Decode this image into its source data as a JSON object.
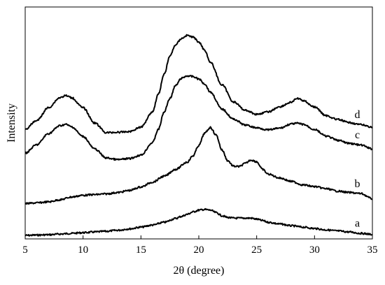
{
  "chart_data": {
    "type": "line",
    "xlabel": "2θ (degree)",
    "ylabel": "Intensity",
    "xlim": [
      5,
      35
    ],
    "xticks": [
      5,
      10,
      15,
      20,
      25,
      30,
      35
    ],
    "yticks_shown": false,
    "grid": false,
    "legend": "none",
    "line_color": "#000000",
    "series": [
      {
        "name": "a",
        "x": [
          5,
          6,
          7,
          8,
          9,
          10,
          11,
          12,
          13,
          14,
          15,
          16,
          17,
          18,
          18.5,
          19,
          19.5,
          20,
          20.5,
          21,
          21.5,
          22,
          22.5,
          23,
          23.5,
          24,
          24.5,
          25,
          25.5,
          26,
          27,
          28,
          29,
          30,
          31,
          32,
          33,
          34,
          35
        ],
        "y": [
          0.0,
          0.01,
          0.02,
          0.04,
          0.06,
          0.08,
          0.1,
          0.12,
          0.15,
          0.19,
          0.24,
          0.3,
          0.38,
          0.49,
          0.55,
          0.61,
          0.68,
          0.73,
          0.75,
          0.73,
          0.66,
          0.57,
          0.52,
          0.5,
          0.5,
          0.5,
          0.5,
          0.47,
          0.43,
          0.38,
          0.33,
          0.28,
          0.24,
          0.2,
          0.16,
          0.13,
          0.1,
          0.06,
          0.03
        ]
      },
      {
        "name": "b",
        "x": [
          5,
          6,
          7,
          8,
          9,
          10,
          11,
          12,
          13,
          14,
          15,
          16,
          17,
          18,
          19,
          19.5,
          20,
          20.5,
          21,
          21.5,
          22,
          22.5,
          23,
          23.5,
          24,
          24.5,
          25,
          25.5,
          26,
          27,
          28,
          29,
          30,
          31,
          32,
          33,
          34,
          35
        ],
        "y": [
          0.92,
          0.94,
          0.97,
          1.03,
          1.11,
          1.16,
          1.18,
          1.2,
          1.24,
          1.3,
          1.4,
          1.54,
          1.71,
          1.91,
          2.12,
          2.3,
          2.6,
          2.95,
          3.12,
          2.9,
          2.47,
          2.16,
          2.0,
          1.99,
          2.08,
          2.18,
          2.13,
          1.91,
          1.77,
          1.66,
          1.56,
          1.46,
          1.41,
          1.35,
          1.28,
          1.24,
          1.21,
          1.06
        ]
      },
      {
        "name": "c",
        "x": [
          5,
          6,
          7,
          8,
          8.5,
          9,
          10,
          11,
          12,
          13,
          14,
          15,
          16,
          16.5,
          17,
          17.5,
          18,
          18.5,
          19,
          19.5,
          20,
          20.5,
          21,
          22,
          23,
          24,
          25,
          26,
          27,
          28,
          28.5,
          29,
          30,
          31,
          32,
          33,
          34,
          35
        ],
        "y": [
          2.38,
          2.62,
          2.94,
          3.17,
          3.21,
          3.14,
          2.86,
          2.5,
          2.24,
          2.19,
          2.22,
          2.32,
          2.68,
          3.06,
          3.56,
          3.96,
          4.33,
          4.54,
          4.61,
          4.59,
          4.52,
          4.38,
          4.14,
          3.65,
          3.36,
          3.19,
          3.11,
          3.05,
          3.1,
          3.22,
          3.24,
          3.21,
          3.06,
          2.87,
          2.75,
          2.66,
          2.61,
          2.5
        ]
      },
      {
        "name": "d",
        "x": [
          5,
          6,
          7,
          8,
          8.5,
          9,
          10,
          11,
          12,
          13,
          14,
          15,
          16,
          16.5,
          17,
          17.5,
          18,
          18.5,
          19,
          19.5,
          20,
          20.5,
          21,
          22,
          23,
          24,
          25,
          26,
          27,
          28,
          28.5,
          29,
          30,
          31,
          32,
          33,
          34,
          35
        ],
        "y": [
          3.07,
          3.32,
          3.69,
          3.98,
          4.04,
          3.98,
          3.69,
          3.25,
          2.97,
          2.98,
          3.0,
          3.13,
          3.57,
          4.08,
          4.65,
          5.18,
          5.51,
          5.69,
          5.78,
          5.73,
          5.59,
          5.36,
          5.0,
          4.35,
          3.86,
          3.62,
          3.5,
          3.57,
          3.72,
          3.85,
          3.96,
          3.9,
          3.71,
          3.46,
          3.35,
          3.26,
          3.2,
          3.13
        ]
      }
    ],
    "ylim": [
      -0.1,
      6.6
    ]
  }
}
